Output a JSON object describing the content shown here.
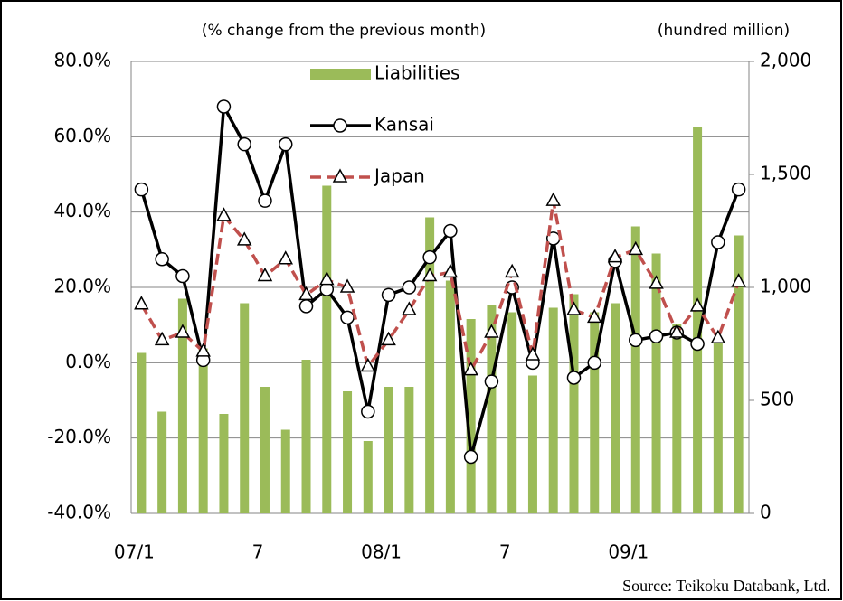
{
  "chart_data": {
    "type": "bar_line",
    "annotations": [
      "(% change from the previous month)",
      "(hundred million)",
      "Source: Teikoku Databank, Ltd."
    ],
    "categories": [
      "07/1",
      null,
      null,
      null,
      null,
      null,
      "7",
      null,
      null,
      null,
      null,
      null,
      "08/1",
      null,
      null,
      null,
      null,
      null,
      "7",
      null,
      null,
      null,
      null,
      null,
      "09/1",
      null,
      null,
      null,
      null,
      null
    ],
    "series": [
      {
        "name": "Liabilities",
        "type": "bar",
        "axis": "y2",
        "color": "#9bbb59",
        "values": [
          710,
          450,
          950,
          730,
          440,
          930,
          560,
          370,
          680,
          1450,
          540,
          320,
          560,
          560,
          1310,
          1030,
          860,
          920,
          890,
          610,
          910,
          970,
          890,
          930,
          1270,
          1150,
          840,
          1710,
          760,
          1230
        ]
      },
      {
        "name": "Kansai",
        "type": "line",
        "color": "#000000",
        "marker": "circle",
        "dash": false,
        "values": [
          46,
          27.5,
          23,
          0.7,
          68,
          58,
          43,
          58,
          15,
          19.5,
          12,
          -13,
          18,
          20,
          28,
          35,
          -25,
          -5,
          20,
          0,
          33,
          -4,
          0,
          27,
          6,
          7,
          8,
          5,
          32,
          46
        ]
      },
      {
        "name": "Japan",
        "type": "line",
        "color": "#c0504d",
        "marker": "triangle",
        "dash": true,
        "values": [
          15.5,
          6,
          8,
          3,
          39,
          32.5,
          23,
          27.5,
          18,
          22,
          20,
          -1,
          6,
          14,
          23,
          24,
          -2,
          8,
          24,
          2,
          43,
          14,
          12,
          28,
          30,
          21,
          8,
          15,
          6.5,
          21.5
        ]
      }
    ],
    "ylim": [
      -40,
      80
    ],
    "yticks": [
      {
        "value": 80,
        "label": "80.0%"
      },
      {
        "value": 60,
        "label": "60.0%"
      },
      {
        "value": 40,
        "label": "40.0%"
      },
      {
        "value": 20,
        "label": "20.0%"
      },
      {
        "value": 0,
        "label": "0.0%"
      },
      {
        "value": -20,
        "label": "-20.0%"
      },
      {
        "value": -40,
        "label": "-40.0%"
      }
    ],
    "y2lim": [
      0,
      2000
    ],
    "y2ticks": [
      {
        "value": 2000,
        "label": "2,000"
      },
      {
        "value": 1500,
        "label": "1,500"
      },
      {
        "value": 1000,
        "label": "1,000"
      },
      500,
      0
    ],
    "grid": true
  }
}
